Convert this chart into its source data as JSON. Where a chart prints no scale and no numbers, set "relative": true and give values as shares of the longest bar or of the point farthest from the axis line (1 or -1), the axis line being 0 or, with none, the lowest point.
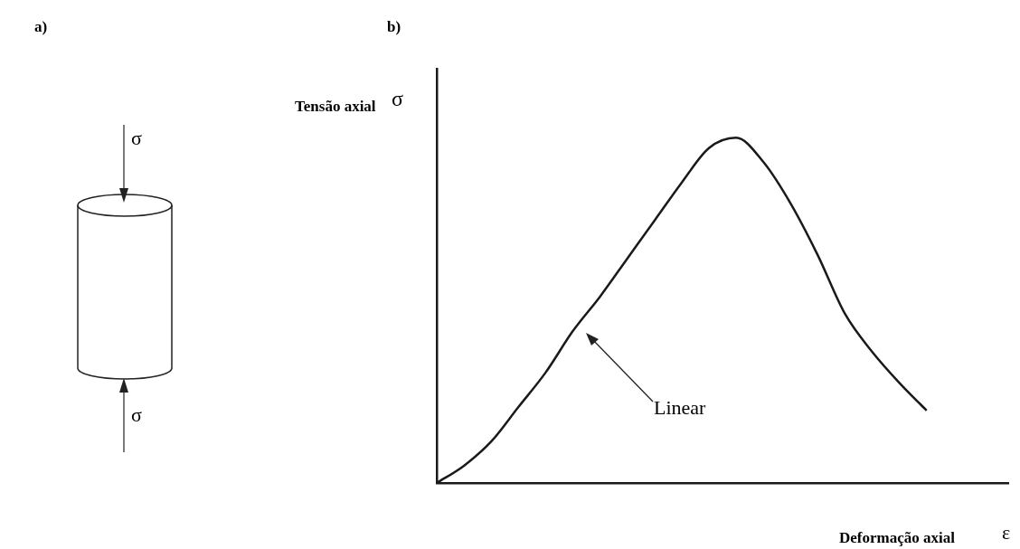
{
  "chart_data": {
    "type": "line",
    "relative": true,
    "xlabel": "Deformação axial",
    "ylabel": "Tensão axial",
    "annotations": [
      "a)",
      "b)",
      "σ",
      "σ",
      "σ",
      "ε",
      "Linear"
    ],
    "categories": [
      null,
      null,
      null,
      null,
      null,
      null,
      null,
      null,
      null,
      null,
      null,
      null,
      null,
      null,
      null,
      null,
      null,
      null,
      null,
      null,
      null,
      null
    ],
    "series": [
      {
        "color": "#1a1a1a",
        "values": [
          0,
          0.05,
          0.12,
          0.22,
          0.32,
          0.44,
          0.54,
          0.65,
          0.76,
          0.87,
          0.97,
          1,
          0.93,
          0.81,
          0.66,
          0.49,
          0.38,
          0.29,
          0.21,
          null,
          null,
          null
        ]
      }
    ],
    "marker": "none"
  }
}
